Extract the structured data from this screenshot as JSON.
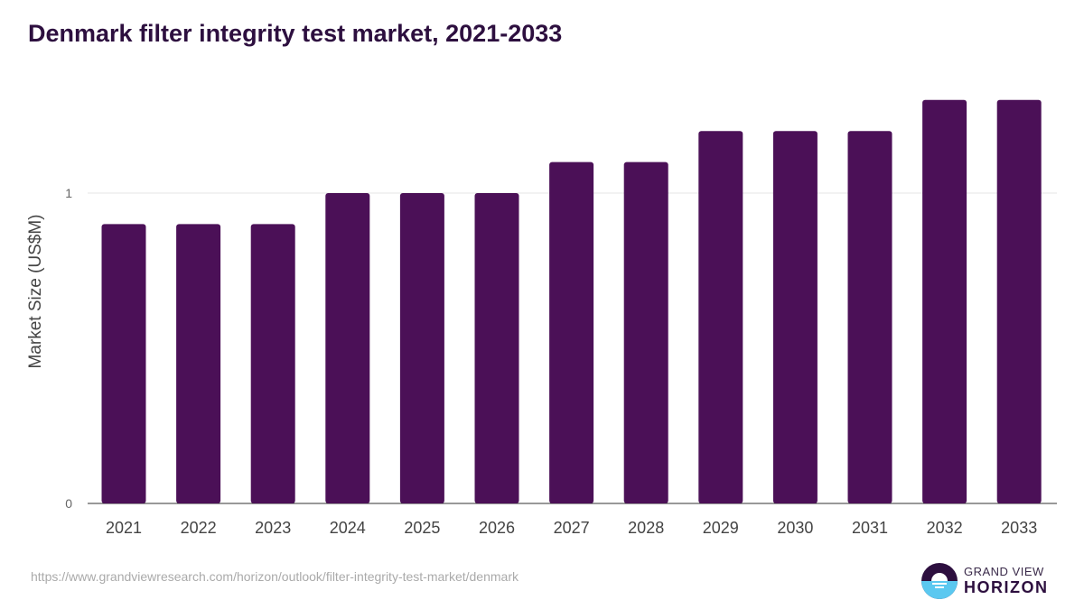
{
  "chart_data": {
    "type": "bar",
    "title": "Denmark filter integrity test market, 2021-2033",
    "xlabel": "",
    "ylabel": "Market Size (US$M)",
    "categories": [
      "2021",
      "2022",
      "2023",
      "2024",
      "2025",
      "2026",
      "2027",
      "2028",
      "2029",
      "2030",
      "2031",
      "2032",
      "2033"
    ],
    "values": [
      0.9,
      0.9,
      0.9,
      1.0,
      1.0,
      1.0,
      1.1,
      1.1,
      1.2,
      1.2,
      1.2,
      1.3,
      1.3
    ],
    "ylim": [
      0,
      1.3
    ],
    "yticks": [
      "0",
      "1"
    ],
    "grid": true,
    "bar_color": "#4b1057"
  },
  "footer": {
    "url": "https://www.grandviewresearch.com/horizon/outlook/filter-integrity-test-market/denmark"
  },
  "logo": {
    "line1": "GRAND VIEW",
    "line2": "HORIZON"
  }
}
